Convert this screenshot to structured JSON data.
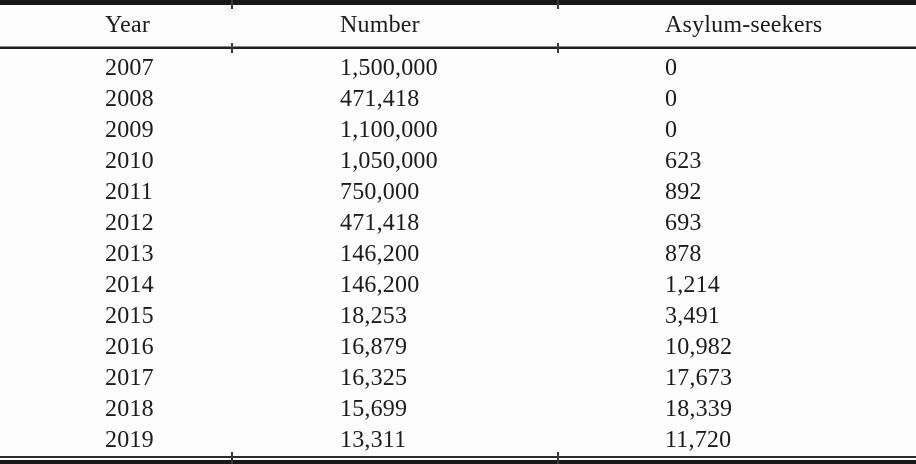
{
  "table": {
    "columns": [
      "Year",
      "Number",
      "Asylum-seekers"
    ],
    "rows": [
      [
        "2007",
        "1,500,000",
        "0"
      ],
      [
        "2008",
        "471,418",
        "0"
      ],
      [
        "2009",
        "1,100,000",
        "0"
      ],
      [
        "2010",
        "1,050,000",
        "623"
      ],
      [
        "2011",
        "750,000",
        "892"
      ],
      [
        "2012",
        "471,418",
        "693"
      ],
      [
        "2013",
        "146,200",
        "878"
      ],
      [
        "2014",
        "146,200",
        "1,214"
      ],
      [
        "2015",
        "18,253",
        "3,491"
      ],
      [
        "2016",
        "16,879",
        "10,982"
      ],
      [
        "2017",
        "16,325",
        "17,673"
      ],
      [
        "2018",
        "15,699",
        "18,339"
      ],
      [
        "2019",
        "13,311",
        "11,720"
      ]
    ]
  },
  "chart_data": {
    "type": "table",
    "columns": [
      "Year",
      "Number",
      "Asylum-seekers"
    ],
    "rows": [
      [
        2007,
        1500000,
        0
      ],
      [
        2008,
        471418,
        0
      ],
      [
        2009,
        1100000,
        0
      ],
      [
        2010,
        1050000,
        623
      ],
      [
        2011,
        750000,
        892
      ],
      [
        2012,
        471418,
        693
      ],
      [
        2013,
        146200,
        878
      ],
      [
        2014,
        146200,
        1214
      ],
      [
        2015,
        18253,
        3491
      ],
      [
        2016,
        16879,
        10982
      ],
      [
        2017,
        16325,
        17673
      ],
      [
        2018,
        15699,
        18339
      ],
      [
        2019,
        13311,
        11720
      ]
    ]
  },
  "colors": {
    "text": "#1c1c1c",
    "rule": "#181818",
    "background": "#fdfdfd"
  }
}
